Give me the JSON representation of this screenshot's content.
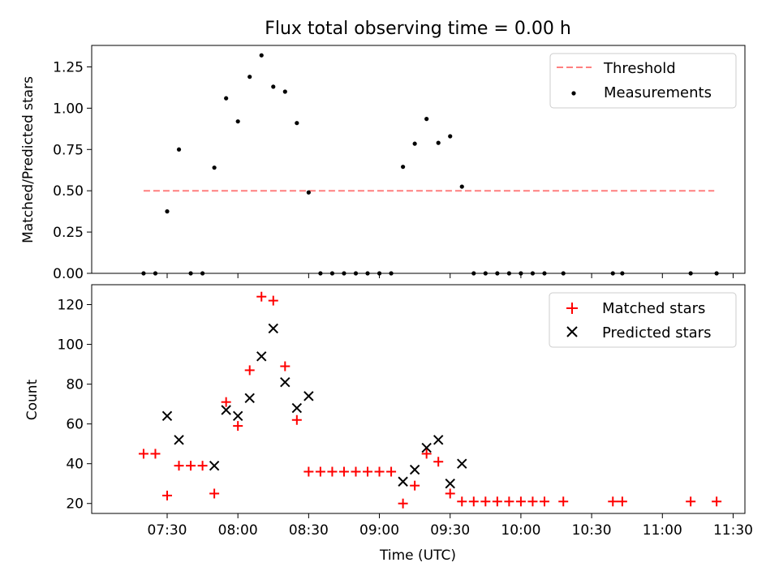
{
  "chart_data": [
    {
      "type": "scatter",
      "title": "Flux total observing time = 0.00 h",
      "xlabel": "",
      "ylabel": "Matched/Predicted stars",
      "ylim": [
        0,
        1.38
      ],
      "yticks": [
        0.0,
        0.25,
        0.5,
        0.75,
        1.0,
        1.25
      ],
      "ytick_labels": [
        "0.00",
        "0.25",
        "0.50",
        "0.75",
        "1.00",
        "1.25"
      ],
      "xlim": [
        "06:58",
        "11:35"
      ],
      "legend_position": "top-right",
      "threshold": {
        "name": "Threshold",
        "value": 0.5,
        "x_start": "07:20",
        "x_end": "11:22",
        "color": "#ff7f7f",
        "style": "dashed"
      },
      "series": [
        {
          "name": "Measurements",
          "color": "#000000",
          "marker": "dot",
          "x": [
            "07:20",
            "07:25",
            "07:30",
            "07:35",
            "07:40",
            "07:45",
            "07:50",
            "07:55",
            "08:00",
            "08:05",
            "08:10",
            "08:15",
            "08:20",
            "08:25",
            "08:30",
            "08:35",
            "08:40",
            "08:45",
            "08:50",
            "08:55",
            "09:00",
            "09:05",
            "09:10",
            "09:15",
            "09:20",
            "09:25",
            "09:30",
            "09:35",
            "09:40",
            "09:45",
            "09:50",
            "09:55",
            "10:00",
            "10:05",
            "10:10",
            "10:18",
            "10:39",
            "10:43",
            "11:12",
            "11:23"
          ],
          "y": [
            0,
            0,
            0.375,
            0.75,
            0,
            0,
            0.64,
            1.06,
            0.92,
            1.19,
            1.32,
            1.13,
            1.1,
            0.91,
            0.49,
            0,
            0,
            0,
            0,
            0,
            0,
            0,
            0.645,
            0.785,
            0.935,
            0.79,
            0.83,
            0.525,
            0,
            0,
            0,
            0,
            0,
            0,
            0,
            0,
            0,
            0,
            0,
            0
          ]
        }
      ]
    },
    {
      "type": "scatter",
      "title": "",
      "xlabel": "Time (UTC)",
      "ylabel": "Count",
      "ylim": [
        15,
        130
      ],
      "yticks": [
        20,
        40,
        60,
        80,
        100,
        120
      ],
      "ytick_labels": [
        "20",
        "40",
        "60",
        "80",
        "100",
        "120"
      ],
      "xlim": [
        "06:58",
        "11:35"
      ],
      "xticks": [
        "07:30",
        "08:00",
        "08:30",
        "09:00",
        "09:30",
        "10:00",
        "10:30",
        "11:00",
        "11:30"
      ],
      "legend_position": "top-right",
      "series": [
        {
          "name": "Matched stars",
          "color": "#ff0000",
          "marker": "plus",
          "x": [
            "07:20",
            "07:25",
            "07:30",
            "07:35",
            "07:40",
            "07:45",
            "07:50",
            "07:55",
            "08:00",
            "08:05",
            "08:10",
            "08:15",
            "08:20",
            "08:25",
            "08:30",
            "08:35",
            "08:40",
            "08:45",
            "08:50",
            "08:55",
            "09:00",
            "09:05",
            "09:10",
            "09:15",
            "09:20",
            "09:25",
            "09:30",
            "09:35",
            "09:40",
            "09:45",
            "09:50",
            "09:55",
            "10:00",
            "10:05",
            "10:10",
            "10:18",
            "10:39",
            "10:43",
            "11:12",
            "11:23"
          ],
          "y": [
            45,
            45,
            24,
            39,
            39,
            39,
            25,
            71,
            59,
            87,
            124,
            122,
            89,
            62,
            36,
            36,
            36,
            36,
            36,
            36,
            36,
            36,
            20,
            29,
            45,
            41,
            25,
            21,
            21,
            21,
            21,
            21,
            21,
            21,
            21,
            21,
            21,
            21,
            21,
            21
          ]
        },
        {
          "name": "Predicted stars",
          "color": "#000000",
          "marker": "x",
          "x": [
            "07:30",
            "07:35",
            "07:50",
            "07:55",
            "08:00",
            "08:05",
            "08:10",
            "08:15",
            "08:20",
            "08:25",
            "08:30",
            "09:10",
            "09:15",
            "09:20",
            "09:25",
            "09:30",
            "09:35"
          ],
          "y": [
            64,
            52,
            39,
            67,
            64,
            73,
            94,
            108,
            81,
            68,
            74,
            31,
            37,
            48,
            52,
            30,
            40
          ]
        }
      ]
    }
  ]
}
